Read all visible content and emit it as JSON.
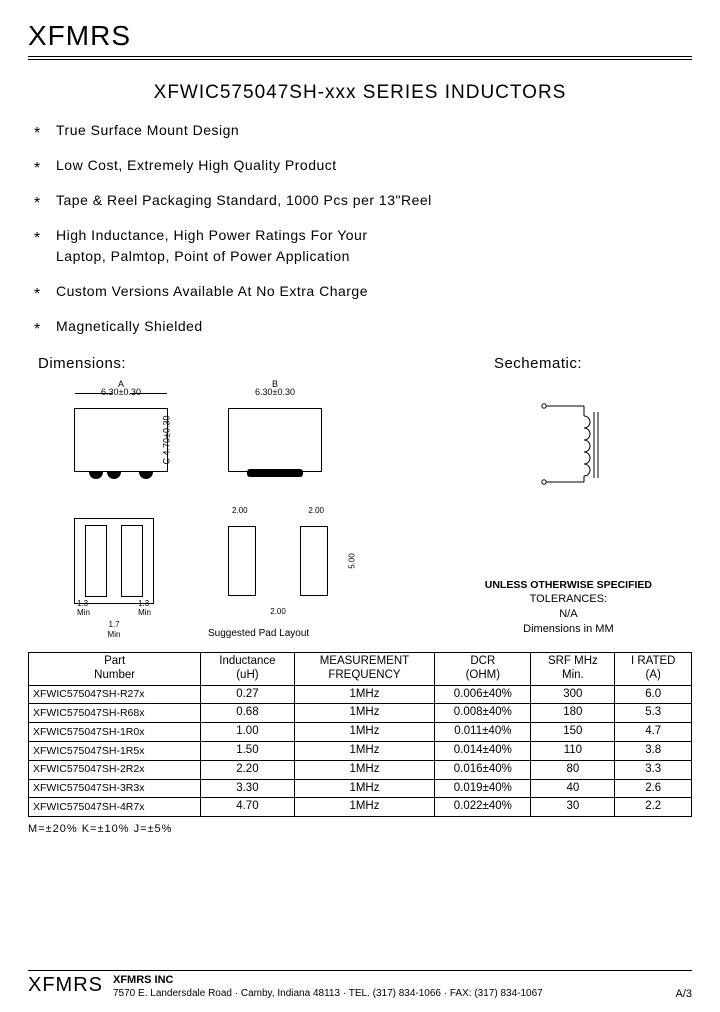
{
  "company": "XFMRS",
  "title": "XFWIC575047SH-xxx  SERIES  INDUCTORS",
  "bullets": [
    "True  Surface  Mount  Design",
    "Low  Cost,  Extremely  High  Quality  Product",
    "Tape  &  Reel  Packaging  Standard,  1000  Pcs  per  13\"Reel",
    "High  Inductance,  High  Power  Ratings  For  Your\nLaptop,  Palmtop,  Point  of  Power  Application",
    "Custom  Versions  Available  At  No  Extra  Charge",
    "Magnetically  Shielded"
  ],
  "labels": {
    "dimensions": "Dimensions:",
    "schematic": "Sechematic:",
    "pad_caption": "Suggested  Pad  Layout"
  },
  "dims": {
    "A_label": "A",
    "A": "6.30±0.30",
    "B_label": "B",
    "B": "6.30±0.30",
    "C_label": "C",
    "C": "4.70±0.30",
    "pad13": "1.3",
    "pad17": "1.7",
    "min": "Min",
    "pad2": "2.00",
    "pad5": "5.00"
  },
  "tolerances": {
    "hdr": "UNLESS OTHERWISE SPECIFIED",
    "l2": "TOLERANCES:",
    "l3": "N/A",
    "l4": "Dimensions  in  MM"
  },
  "table": {
    "headers": {
      "pn": "Part\nNumber",
      "ind": "Inductance\n(uH)",
      "freq": "MEASUREMENT\nFREQUENCY",
      "dcr": "DCR\n(OHM)",
      "srf": "SRF  MHz\nMin.",
      "irated": "I RATED\n(A)"
    },
    "rows": [
      {
        "pn": "XFWIC575047SH-R27x",
        "ind": "0.27",
        "freq": "1MHz",
        "dcr": "0.006±40%",
        "srf": "300",
        "ir": "6.0"
      },
      {
        "pn": "XFWIC575047SH-R68x",
        "ind": "0.68",
        "freq": "1MHz",
        "dcr": "0.008±40%",
        "srf": "180",
        "ir": "5.3"
      },
      {
        "pn": "XFWIC575047SH-1R0x",
        "ind": "1.00",
        "freq": "1MHz",
        "dcr": "0.011±40%",
        "srf": "150",
        "ir": "4.7"
      },
      {
        "pn": "XFWIC575047SH-1R5x",
        "ind": "1.50",
        "freq": "1MHz",
        "dcr": "0.014±40%",
        "srf": "110",
        "ir": "3.8"
      },
      {
        "pn": "XFWIC575047SH-2R2x",
        "ind": "2.20",
        "freq": "1MHz",
        "dcr": "0.016±40%",
        "srf": "80",
        "ir": "3.3"
      },
      {
        "pn": "XFWIC575047SH-3R3x",
        "ind": "3.30",
        "freq": "1MHz",
        "dcr": "0.019±40%",
        "srf": "40",
        "ir": "2.6"
      },
      {
        "pn": "XFWIC575047SH-4R7x",
        "ind": "4.70",
        "freq": "1MHz",
        "dcr": "0.022±40%",
        "srf": "30",
        "ir": "2.2"
      }
    ]
  },
  "tolnote": "M=±20%    K=±10%    J=±5%",
  "footer": {
    "logo": "XFMRS",
    "name": "XFMRS  INC",
    "addr": "7570 E. Landersdale Road · Camby, Indiana 48113 · TEL. (317) 834-1066 · FAX: (317) 834-1067",
    "page": "A/3"
  },
  "colors": {
    "fg": "#000000",
    "bg": "#ffffff"
  }
}
